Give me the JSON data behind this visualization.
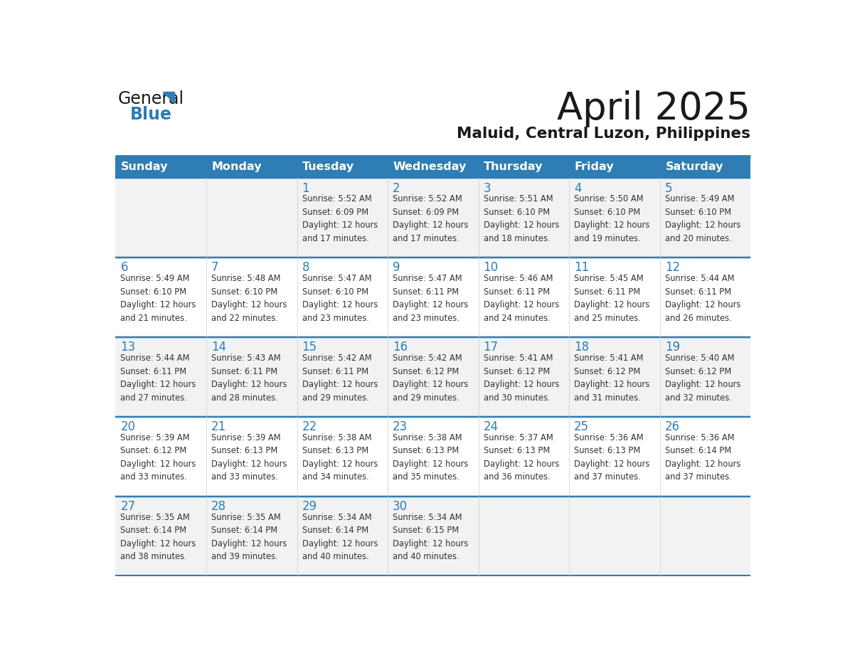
{
  "title": "April 2025",
  "subtitle": "Maluid, Central Luzon, Philippines",
  "header_bg_color": "#2E7DB5",
  "header_text_color": "#FFFFFF",
  "cell_bg_even": "#F2F2F2",
  "cell_bg_odd": "#FFFFFF",
  "title_color": "#1a1a1a",
  "subtitle_color": "#1a1a1a",
  "day_text_color": "#2E7DB5",
  "cell_text_color": "#333333",
  "days_of_week": [
    "Sunday",
    "Monday",
    "Tuesday",
    "Wednesday",
    "Thursday",
    "Friday",
    "Saturday"
  ],
  "calendar_data": [
    [
      {
        "day": null,
        "info": null
      },
      {
        "day": null,
        "info": null
      },
      {
        "day": 1,
        "info": "Sunrise: 5:52 AM\nSunset: 6:09 PM\nDaylight: 12 hours\nand 17 minutes."
      },
      {
        "day": 2,
        "info": "Sunrise: 5:52 AM\nSunset: 6:09 PM\nDaylight: 12 hours\nand 17 minutes."
      },
      {
        "day": 3,
        "info": "Sunrise: 5:51 AM\nSunset: 6:10 PM\nDaylight: 12 hours\nand 18 minutes."
      },
      {
        "day": 4,
        "info": "Sunrise: 5:50 AM\nSunset: 6:10 PM\nDaylight: 12 hours\nand 19 minutes."
      },
      {
        "day": 5,
        "info": "Sunrise: 5:49 AM\nSunset: 6:10 PM\nDaylight: 12 hours\nand 20 minutes."
      }
    ],
    [
      {
        "day": 6,
        "info": "Sunrise: 5:49 AM\nSunset: 6:10 PM\nDaylight: 12 hours\nand 21 minutes."
      },
      {
        "day": 7,
        "info": "Sunrise: 5:48 AM\nSunset: 6:10 PM\nDaylight: 12 hours\nand 22 minutes."
      },
      {
        "day": 8,
        "info": "Sunrise: 5:47 AM\nSunset: 6:10 PM\nDaylight: 12 hours\nand 23 minutes."
      },
      {
        "day": 9,
        "info": "Sunrise: 5:47 AM\nSunset: 6:11 PM\nDaylight: 12 hours\nand 23 minutes."
      },
      {
        "day": 10,
        "info": "Sunrise: 5:46 AM\nSunset: 6:11 PM\nDaylight: 12 hours\nand 24 minutes."
      },
      {
        "day": 11,
        "info": "Sunrise: 5:45 AM\nSunset: 6:11 PM\nDaylight: 12 hours\nand 25 minutes."
      },
      {
        "day": 12,
        "info": "Sunrise: 5:44 AM\nSunset: 6:11 PM\nDaylight: 12 hours\nand 26 minutes."
      }
    ],
    [
      {
        "day": 13,
        "info": "Sunrise: 5:44 AM\nSunset: 6:11 PM\nDaylight: 12 hours\nand 27 minutes."
      },
      {
        "day": 14,
        "info": "Sunrise: 5:43 AM\nSunset: 6:11 PM\nDaylight: 12 hours\nand 28 minutes."
      },
      {
        "day": 15,
        "info": "Sunrise: 5:42 AM\nSunset: 6:11 PM\nDaylight: 12 hours\nand 29 minutes."
      },
      {
        "day": 16,
        "info": "Sunrise: 5:42 AM\nSunset: 6:12 PM\nDaylight: 12 hours\nand 29 minutes."
      },
      {
        "day": 17,
        "info": "Sunrise: 5:41 AM\nSunset: 6:12 PM\nDaylight: 12 hours\nand 30 minutes."
      },
      {
        "day": 18,
        "info": "Sunrise: 5:41 AM\nSunset: 6:12 PM\nDaylight: 12 hours\nand 31 minutes."
      },
      {
        "day": 19,
        "info": "Sunrise: 5:40 AM\nSunset: 6:12 PM\nDaylight: 12 hours\nand 32 minutes."
      }
    ],
    [
      {
        "day": 20,
        "info": "Sunrise: 5:39 AM\nSunset: 6:12 PM\nDaylight: 12 hours\nand 33 minutes."
      },
      {
        "day": 21,
        "info": "Sunrise: 5:39 AM\nSunset: 6:13 PM\nDaylight: 12 hours\nand 33 minutes."
      },
      {
        "day": 22,
        "info": "Sunrise: 5:38 AM\nSunset: 6:13 PM\nDaylight: 12 hours\nand 34 minutes."
      },
      {
        "day": 23,
        "info": "Sunrise: 5:38 AM\nSunset: 6:13 PM\nDaylight: 12 hours\nand 35 minutes."
      },
      {
        "day": 24,
        "info": "Sunrise: 5:37 AM\nSunset: 6:13 PM\nDaylight: 12 hours\nand 36 minutes."
      },
      {
        "day": 25,
        "info": "Sunrise: 5:36 AM\nSunset: 6:13 PM\nDaylight: 12 hours\nand 37 minutes."
      },
      {
        "day": 26,
        "info": "Sunrise: 5:36 AM\nSunset: 6:14 PM\nDaylight: 12 hours\nand 37 minutes."
      }
    ],
    [
      {
        "day": 27,
        "info": "Sunrise: 5:35 AM\nSunset: 6:14 PM\nDaylight: 12 hours\nand 38 minutes."
      },
      {
        "day": 28,
        "info": "Sunrise: 5:35 AM\nSunset: 6:14 PM\nDaylight: 12 hours\nand 39 minutes."
      },
      {
        "day": 29,
        "info": "Sunrise: 5:34 AM\nSunset: 6:14 PM\nDaylight: 12 hours\nand 40 minutes."
      },
      {
        "day": 30,
        "info": "Sunrise: 5:34 AM\nSunset: 6:15 PM\nDaylight: 12 hours\nand 40 minutes."
      },
      {
        "day": null,
        "info": null
      },
      {
        "day": null,
        "info": null
      },
      {
        "day": null,
        "info": null
      }
    ]
  ],
  "logo_color_general": "#1a1a1a",
  "logo_color_blue": "#2E7DB5",
  "logo_triangle_color": "#2E7DB5"
}
